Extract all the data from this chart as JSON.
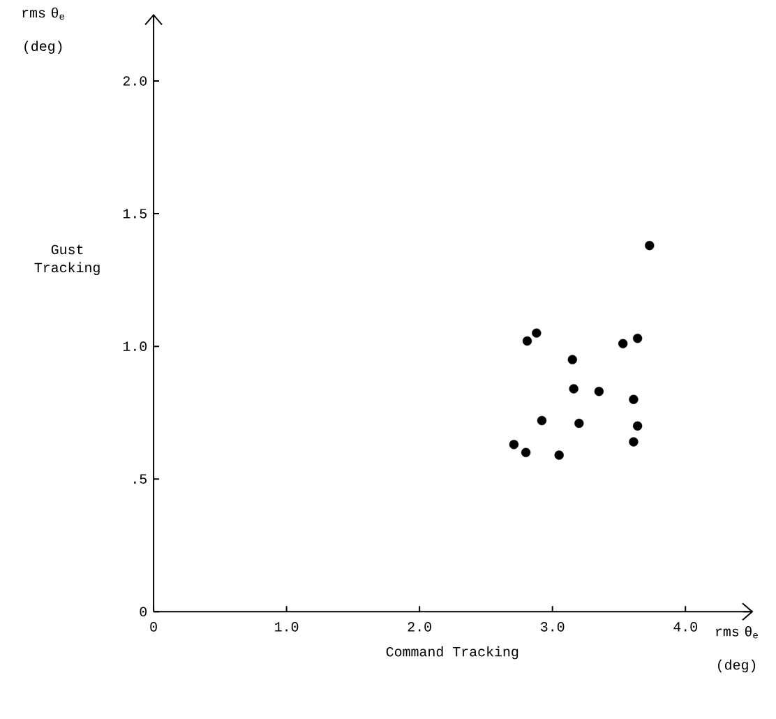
{
  "chart_data": {
    "type": "scatter",
    "xlabel": "Command Tracking",
    "ylabel": "Gust Tracking",
    "annotations": [
      "rms θ$_{e}$ (deg)",
      "rms θ$_{e}$ (deg)"
    ],
    "x": [
      3.73,
      2.88,
      2.81,
      3.64,
      3.53,
      3.15,
      3.16,
      3.35,
      3.61,
      2.92,
      3.2,
      3.64,
      3.61,
      2.71,
      2.8,
      3.05
    ],
    "values": [
      1.38,
      1.05,
      1.02,
      1.03,
      1.01,
      0.95,
      0.84,
      0.83,
      0.8,
      0.72,
      0.71,
      0.7,
      0.64,
      0.63,
      0.6,
      0.59
    ],
    "color": "#000000",
    "marker": "circle",
    "xlim": [
      0,
      4.5
    ],
    "ylim": [
      0,
      2.25
    ],
    "xticks": [
      0,
      {
        "value": 1,
        "label": "1.0"
      },
      {
        "value": 2,
        "label": "2.0"
      },
      {
        "value": 3,
        "label": "3.0"
      },
      {
        "value": 4,
        "label": "4.0"
      }
    ],
    "yticks": [
      0,
      {
        "value": 0.5,
        "label": ".5"
      },
      {
        "value": 1,
        "label": "1.0"
      },
      {
        "value": 1.5,
        "label": "1.5"
      },
      {
        "value": 2,
        "label": "2.0"
      }
    ]
  }
}
